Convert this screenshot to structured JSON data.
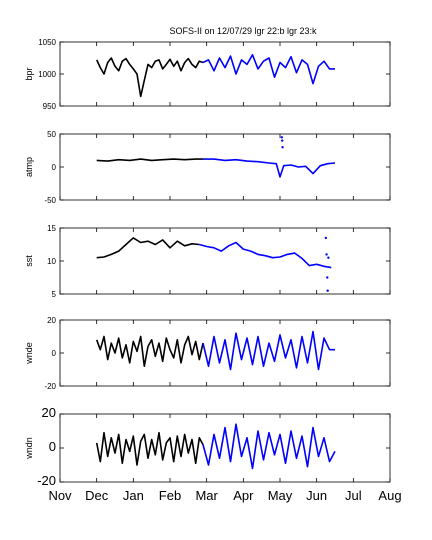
{
  "figure": {
    "title": "SOFS-II on 12/07/29 lgr 22:b lgr 23:k"
  },
  "colors": {
    "series_a": "#000000",
    "series_b": "#0000ff"
  },
  "chart_data": [
    {
      "type": "line",
      "ylabel": "bpr",
      "ylim": [
        950,
        1050
      ],
      "yticks": [
        950,
        1000,
        1050
      ],
      "x_unit": "months (0 = Nov 1)",
      "series": [
        {
          "color": "black",
          "x": [
            1.0,
            1.1,
            1.2,
            1.3,
            1.4,
            1.5,
            1.6,
            1.7,
            1.8,
            1.9,
            2.0,
            2.1,
            2.2,
            2.3,
            2.4,
            2.5,
            2.6,
            2.7,
            2.8,
            2.9,
            3.0,
            3.1,
            3.2,
            3.3,
            3.4,
            3.5,
            3.6,
            3.7,
            3.8,
            3.9
          ],
          "y": [
            1022,
            1010,
            1000,
            1018,
            1025,
            1012,
            1005,
            1020,
            1024,
            1015,
            1008,
            1000,
            965,
            990,
            1015,
            1010,
            1020,
            1022,
            1008,
            1015,
            1023,
            1012,
            1020,
            1005,
            1018,
            1024,
            1015,
            1010,
            1020,
            1018
          ]
        },
        {
          "color": "blue",
          "x": [
            3.9,
            4.05,
            4.2,
            4.35,
            4.5,
            4.65,
            4.8,
            4.95,
            5.1,
            5.25,
            5.4,
            5.55,
            5.7,
            5.85,
            6.0,
            6.15,
            6.3,
            6.45,
            6.6,
            6.75,
            6.9,
            7.05,
            7.2,
            7.35,
            7.5
          ],
          "y": [
            1018,
            1022,
            1005,
            1025,
            1010,
            1028,
            1000,
            1022,
            1015,
            1030,
            1008,
            1020,
            1025,
            995,
            1018,
            1010,
            1027,
            1002,
            1022,
            1015,
            985,
            1012,
            1020,
            1008,
            1008
          ]
        }
      ]
    },
    {
      "type": "line",
      "ylabel": "atmp",
      "ylim": [
        -50,
        50
      ],
      "yticks": [
        -50,
        0,
        50
      ],
      "series": [
        {
          "color": "black",
          "x": [
            1.0,
            1.3,
            1.6,
            1.9,
            2.2,
            2.5,
            2.8,
            3.1,
            3.4,
            3.7,
            3.9
          ],
          "y": [
            10,
            9,
            11,
            10,
            12,
            10,
            11,
            12,
            11,
            12,
            12
          ]
        },
        {
          "color": "blue",
          "x": [
            3.9,
            4.2,
            4.5,
            4.8,
            5.1,
            5.4,
            5.7,
            5.9,
            6.0,
            6.1,
            6.3,
            6.5,
            6.7,
            6.9,
            7.1,
            7.3,
            7.5
          ],
          "y": [
            12,
            12,
            10,
            11,
            9,
            8,
            6,
            5,
            -15,
            2,
            3,
            0,
            1,
            -10,
            2,
            5,
            6
          ]
        },
        {
          "color": "blue",
          "mode": "points",
          "x": [
            6.05,
            6.06,
            6.07
          ],
          "y": [
            45,
            40,
            30
          ]
        }
      ]
    },
    {
      "type": "line",
      "ylabel": "sst",
      "ylim": [
        5,
        15
      ],
      "yticks": [
        5,
        10,
        15
      ],
      "series": [
        {
          "color": "black",
          "x": [
            1.0,
            1.2,
            1.4,
            1.6,
            1.8,
            2.0,
            2.2,
            2.4,
            2.6,
            2.8,
            3.0,
            3.2,
            3.4,
            3.6,
            3.8
          ],
          "y": [
            10.5,
            10.6,
            11.0,
            11.5,
            12.5,
            13.5,
            12.8,
            13.0,
            12.5,
            13.2,
            12.0,
            13.0,
            12.3,
            12.6,
            12.5
          ]
        },
        {
          "color": "blue",
          "x": [
            3.8,
            4.0,
            4.2,
            4.4,
            4.6,
            4.8,
            5.0,
            5.2,
            5.4,
            5.6,
            5.8,
            6.0,
            6.2,
            6.4,
            6.6,
            6.8,
            7.0,
            7.2,
            7.4
          ],
          "y": [
            12.5,
            12.2,
            12.0,
            11.5,
            12.3,
            12.8,
            11.8,
            11.5,
            11.0,
            10.8,
            10.5,
            10.6,
            11.0,
            11.2,
            10.4,
            9.3,
            9.5,
            9.2,
            9.0
          ]
        },
        {
          "color": "blue",
          "mode": "points",
          "x": [
            7.25,
            7.27,
            7.29,
            7.3,
            7.32
          ],
          "y": [
            13.5,
            11.0,
            7.5,
            5.5,
            10.5
          ]
        }
      ]
    },
    {
      "type": "line",
      "ylabel": "wnde",
      "ylim": [
        -20,
        20
      ],
      "yticks": [
        -20,
        0,
        20
      ],
      "series": [
        {
          "color": "black",
          "x": [
            1.0,
            1.1,
            1.2,
            1.3,
            1.4,
            1.5,
            1.6,
            1.7,
            1.8,
            1.9,
            2.0,
            2.1,
            2.2,
            2.3,
            2.4,
            2.5,
            2.6,
            2.7,
            2.8,
            2.9,
            3.0,
            3.1,
            3.2,
            3.3,
            3.4,
            3.5,
            3.6,
            3.7,
            3.8,
            3.9
          ],
          "y": [
            8,
            2,
            10,
            -4,
            6,
            0,
            9,
            -3,
            5,
            -6,
            7,
            1,
            10,
            -8,
            4,
            8,
            -2,
            6,
            -5,
            9,
            2,
            -3,
            8,
            -6,
            5,
            10,
            -1,
            7,
            -4,
            6
          ]
        },
        {
          "color": "blue",
          "x": [
            3.9,
            4.05,
            4.2,
            4.35,
            4.5,
            4.65,
            4.8,
            4.95,
            5.1,
            5.25,
            5.4,
            5.55,
            5.7,
            5.85,
            6.0,
            6.15,
            6.3,
            6.45,
            6.6,
            6.75,
            6.9,
            7.05,
            7.2,
            7.35,
            7.5
          ],
          "y": [
            6,
            -8,
            10,
            -6,
            8,
            -10,
            12,
            -4,
            9,
            -7,
            10,
            -8,
            6,
            -5,
            11,
            -3,
            8,
            -9,
            10,
            -6,
            13,
            -10,
            9,
            2,
            2
          ]
        }
      ]
    },
    {
      "type": "line",
      "ylabel": "wndn",
      "ylim": [
        -20,
        20
      ],
      "yticks": [
        -20,
        0,
        20
      ],
      "xlim": [
        0,
        9
      ],
      "xticks": [
        0,
        1,
        2,
        3,
        4,
        5,
        6,
        7,
        8,
        9
      ],
      "xticklabels": [
        "Nov",
        "Dec",
        "Jan",
        "Feb",
        "Mar",
        "Apr",
        "May",
        "Jun",
        "Jul",
        "Aug"
      ],
      "series": [
        {
          "color": "black",
          "x": [
            1.0,
            1.1,
            1.2,
            1.3,
            1.4,
            1.5,
            1.6,
            1.7,
            1.8,
            1.9,
            2.0,
            2.1,
            2.2,
            2.3,
            2.4,
            2.5,
            2.6,
            2.7,
            2.8,
            2.9,
            3.0,
            3.1,
            3.2,
            3.3,
            3.4,
            3.5,
            3.6,
            3.7,
            3.8,
            3.9
          ],
          "y": [
            3,
            -8,
            9,
            -5,
            6,
            -3,
            8,
            -9,
            5,
            -2,
            7,
            -10,
            4,
            8,
            -6,
            5,
            -4,
            9,
            -7,
            3,
            6,
            -8,
            7,
            -5,
            8,
            -3,
            5,
            -9,
            6,
            2
          ]
        },
        {
          "color": "blue",
          "x": [
            3.9,
            4.05,
            4.2,
            4.35,
            4.5,
            4.65,
            4.8,
            4.95,
            5.1,
            5.25,
            5.4,
            5.55,
            5.7,
            5.85,
            6.0,
            6.15,
            6.3,
            6.45,
            6.6,
            6.75,
            6.9,
            7.05,
            7.2,
            7.35,
            7.5
          ],
          "y": [
            2,
            -10,
            8,
            -6,
            12,
            -8,
            14,
            -5,
            6,
            -12,
            10,
            -7,
            9,
            -4,
            8,
            -9,
            10,
            -6,
            7,
            -11,
            12,
            -5,
            6,
            -8,
            -2
          ]
        }
      ]
    }
  ]
}
